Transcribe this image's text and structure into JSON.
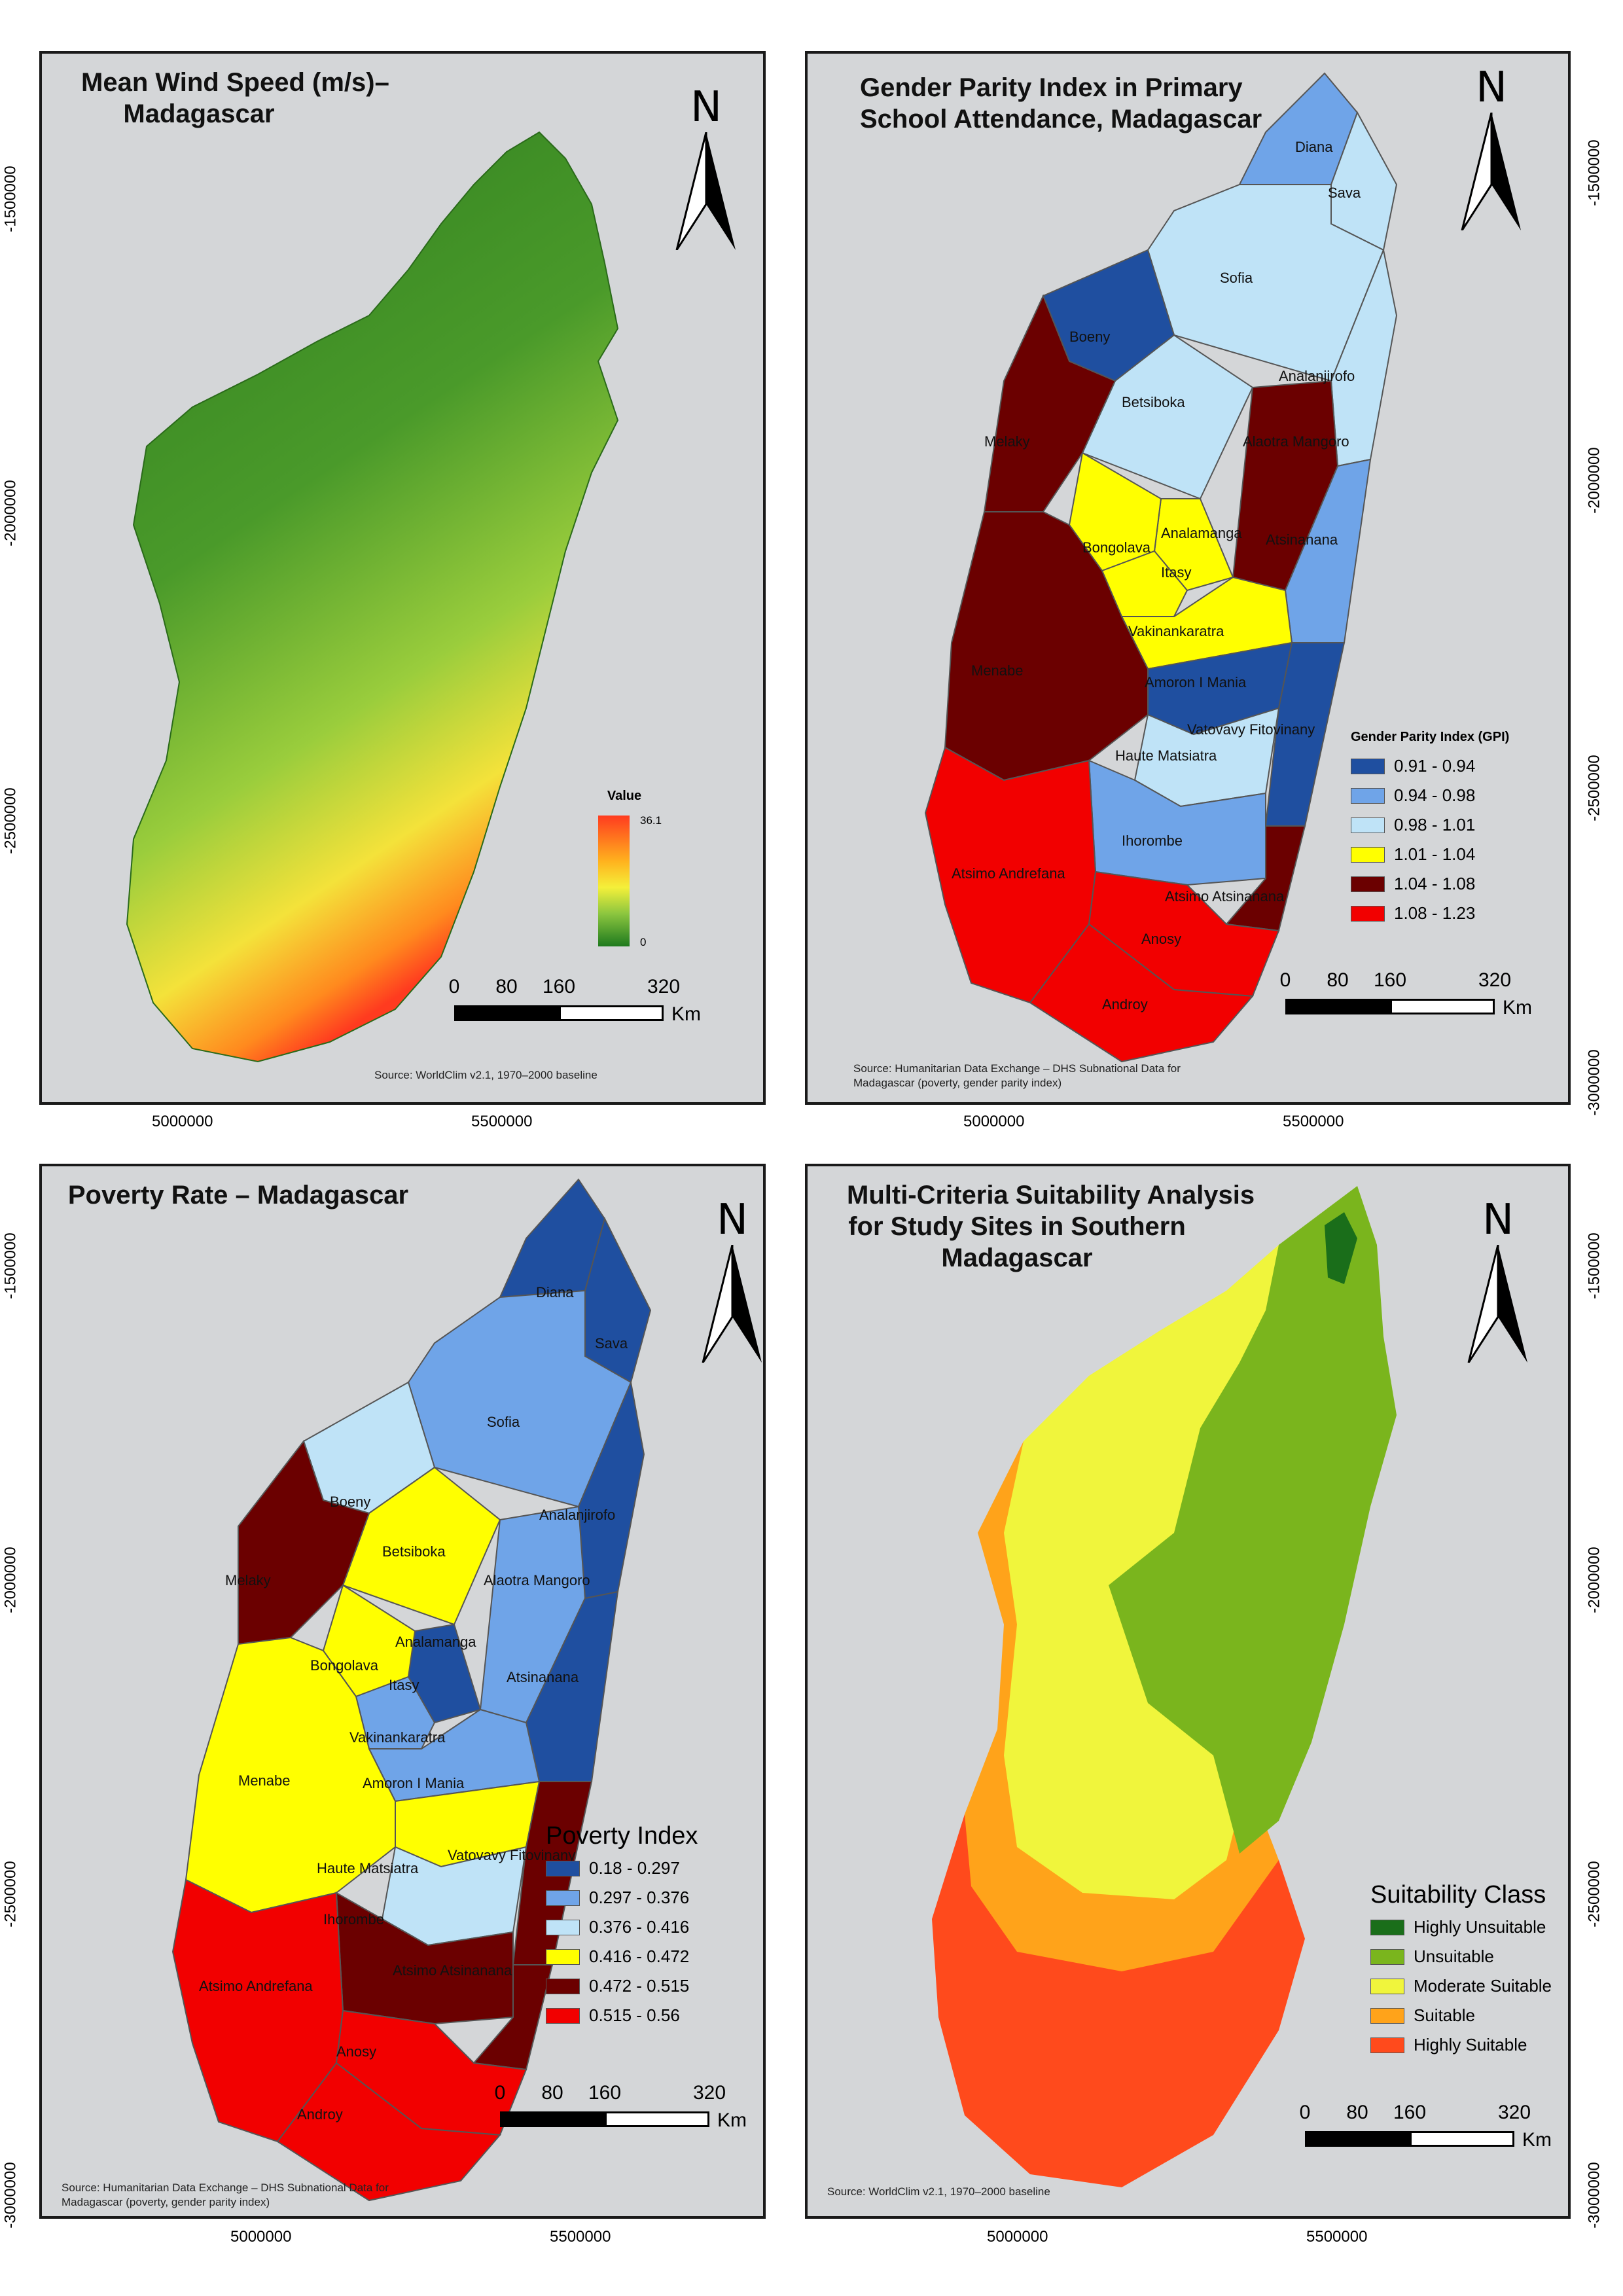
{
  "panels": [
    {
      "title_lines": [
        "Mean Wind Speed (m/s)–",
        "Madagascar"
      ],
      "legend": {
        "title": "Value",
        "max": "36.1",
        "min": "0"
      },
      "source": "Source: WorldClim v2.1, 1970–2000 baseline",
      "colors": {
        "low": "#2b7a1e",
        "mid": "#8cc63f",
        "high": "#ff3b1f"
      }
    },
    {
      "title_lines": [
        "Gender Parity Index in Primary",
        "School Attendance, Madagascar"
      ],
      "legend": {
        "title": "Gender Parity Index (GPI)",
        "items": [
          {
            "label": "0.91 - 0.94",
            "color": "#1f4fa0"
          },
          {
            "label": "0.94 - 0.98",
            "color": "#6fa4e8"
          },
          {
            "label": "0.98 - 1.01",
            "color": "#bfe3f7"
          },
          {
            "label": "1.01 - 1.04",
            "color": "#ffff00"
          },
          {
            "label": "1.04 - 1.08",
            "color": "#6b0000"
          },
          {
            "label": "1.08 - 1.23",
            "color": "#f20000"
          }
        ]
      },
      "regions": [
        {
          "name": "Diana",
          "color": "#6fa4e8"
        },
        {
          "name": "Sava",
          "color": "#bfe3f7"
        },
        {
          "name": "Sofia",
          "color": "#bfe3f7"
        },
        {
          "name": "Boeny",
          "color": "#1f4fa0"
        },
        {
          "name": "Analanjirofo",
          "color": "#bfe3f7"
        },
        {
          "name": "Betsiboka",
          "color": "#bfe3f7"
        },
        {
          "name": "Melaky",
          "color": "#6b0000"
        },
        {
          "name": "Alaotra Mangoro",
          "color": "#6b0000"
        },
        {
          "name": "Analamanga",
          "color": "#ffff00"
        },
        {
          "name": "Bongolava",
          "color": "#ffff00"
        },
        {
          "name": "Atsinanana",
          "color": "#6fa4e8"
        },
        {
          "name": "Itasy",
          "color": "#ffff00"
        },
        {
          "name": "Vakinankaratra",
          "color": "#ffff00"
        },
        {
          "name": "Amoron I Mania",
          "color": "#1f4fa0"
        },
        {
          "name": "Menabe",
          "color": "#6b0000"
        },
        {
          "name": "Vatovavy Fitovinany",
          "color": "#1f4fa0"
        },
        {
          "name": "Haute Matsiatra",
          "color": "#bfe3f7"
        },
        {
          "name": "Ihorombe",
          "color": "#6fa4e8"
        },
        {
          "name": "Atsimo Atsinanana",
          "color": "#6b0000"
        },
        {
          "name": "Atsimo Andrefana",
          "color": "#f20000"
        },
        {
          "name": "Anosy",
          "color": "#f20000"
        },
        {
          "name": "Androy",
          "color": "#f20000"
        }
      ],
      "source_lines": [
        "Source:   Humanitarian   Data   Exchange   –   DHS   Subnational   Data   for",
        "Madagascar (poverty, gender parity index)"
      ]
    },
    {
      "title_lines": [
        "Poverty Rate – Madagascar"
      ],
      "legend": {
        "title": "Poverty Index",
        "items": [
          {
            "label": "0.18 - 0.297",
            "color": "#1f4fa0"
          },
          {
            "label": "0.297 - 0.376",
            "color": "#6fa4e8"
          },
          {
            "label": "0.376 - 0.416",
            "color": "#bfe3f7"
          },
          {
            "label": "0.416 - 0.472",
            "color": "#ffff00"
          },
          {
            "label": "0.472 - 0.515",
            "color": "#6b0000"
          },
          {
            "label": "0.515 - 0.56",
            "color": "#f20000"
          }
        ]
      },
      "regions": [
        {
          "name": "Diana",
          "color": "#1f4fa0"
        },
        {
          "name": "Sava",
          "color": "#1f4fa0"
        },
        {
          "name": "Sofia",
          "color": "#6fa4e8"
        },
        {
          "name": "Boeny",
          "color": "#bfe3f7"
        },
        {
          "name": "Analanjirofo",
          "color": "#1f4fa0"
        },
        {
          "name": "Betsiboka",
          "color": "#ffff00"
        },
        {
          "name": "Melaky",
          "color": "#6b0000"
        },
        {
          "name": "Alaotra Mangoro",
          "color": "#6fa4e8"
        },
        {
          "name": "Analamanga",
          "color": "#1f4fa0"
        },
        {
          "name": "Bongolava",
          "color": "#ffff00"
        },
        {
          "name": "Atsinanana",
          "color": "#1f4fa0"
        },
        {
          "name": "Itasy",
          "color": "#6fa4e8"
        },
        {
          "name": "Vakinankaratra",
          "color": "#6fa4e8"
        },
        {
          "name": "Amoron I Mania",
          "color": "#ffff00"
        },
        {
          "name": "Menabe",
          "color": "#ffff00"
        },
        {
          "name": "Vatovavy Fitovinany",
          "color": "#6b0000"
        },
        {
          "name": "Haute Matsiatra",
          "color": "#bfe3f7"
        },
        {
          "name": "Ihorombe",
          "color": "#6b0000"
        },
        {
          "name": "Atsimo Atsinanana",
          "color": "#6b0000"
        },
        {
          "name": "Atsimo Andrefana",
          "color": "#f20000"
        },
        {
          "name": "Anosy",
          "color": "#f20000"
        },
        {
          "name": "Androy",
          "color": "#f20000"
        }
      ],
      "source_lines": [
        "Source:   Humanitarian   Data   Exchange   –   DHS   Subnational   Data   for",
        "Madagascar (poverty, gender parity index)"
      ]
    },
    {
      "title_lines": [
        "Multi-Criteria Suitability Analysis",
        "for Study Sites in Southern",
        "Madagascar"
      ],
      "legend": {
        "title": "Suitability Class",
        "items": [
          {
            "label": "Highly Unsuitable",
            "color": "#1a6e1a"
          },
          {
            "label": "Unsuitable",
            "color": "#7ab51d"
          },
          {
            "label": "Moderate Suitable",
            "color": "#f0f53c"
          },
          {
            "label": "Suitable",
            "color": "#ffa31a"
          },
          {
            "label": "Highly Suitable",
            "color": "#ff4a1c"
          }
        ]
      },
      "source": "Source: WorldClim v2.1, 1970–2000 baseline"
    }
  ],
  "north_arrow": "N",
  "scale": {
    "ticks": [
      "0",
      "80",
      "160",
      "320"
    ],
    "unit": "Km"
  },
  "axes": {
    "x_ticks": [
      "5000000",
      "5500000"
    ],
    "y_ticks": [
      "-1500000",
      "-2000000",
      "-2500000",
      "-3000000"
    ]
  }
}
